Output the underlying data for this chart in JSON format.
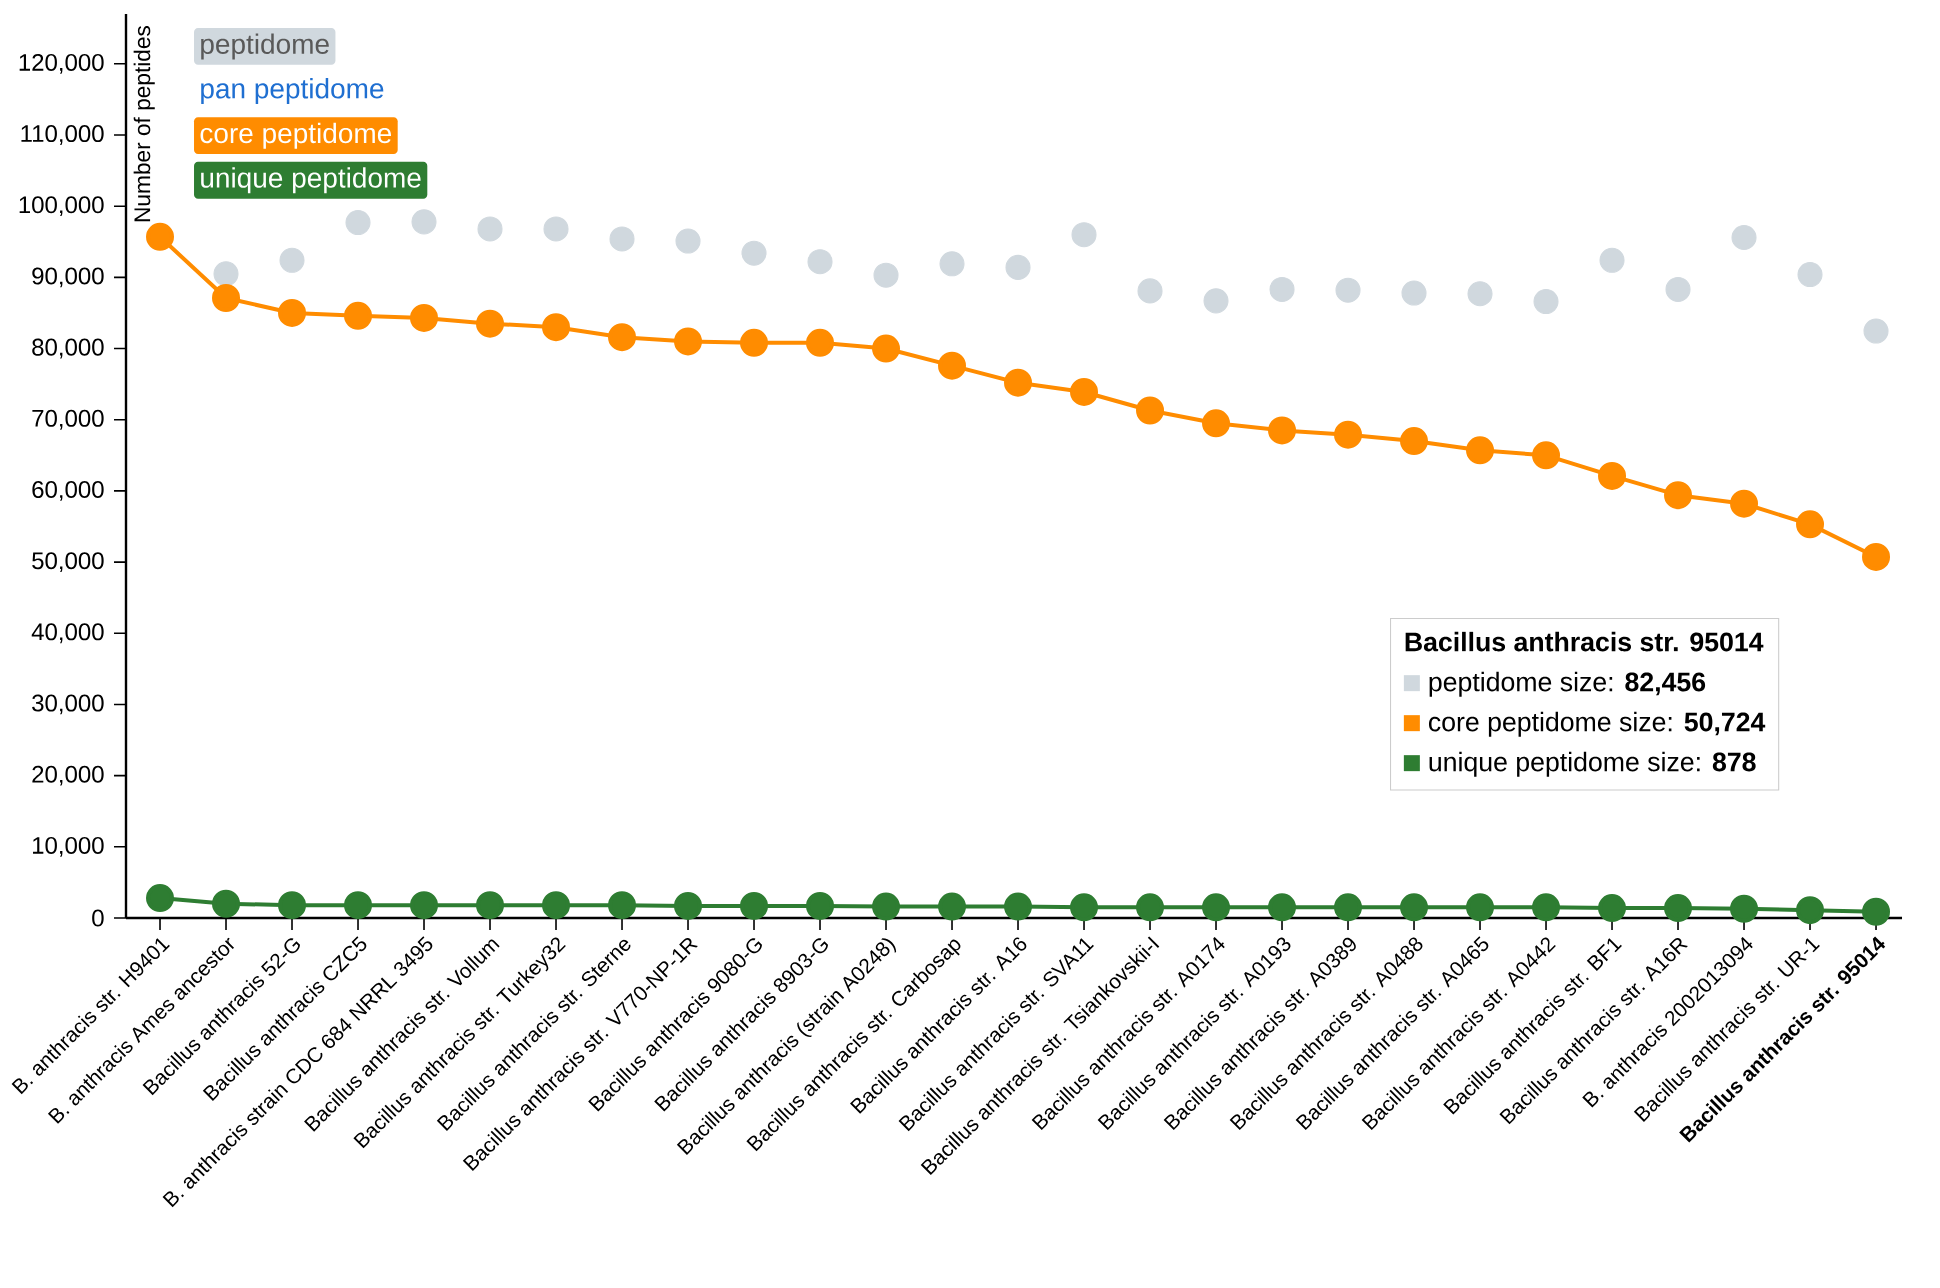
{
  "chart_data": {
    "type": "line",
    "ylabel": "Number of peptides",
    "categories": [
      "B. anthracis str. H9401",
      "B. anthracis Ames ancestor",
      "Bacillus anthracis 52-G",
      "Bacillus anthracis CZC5",
      "B. anthracis strain CDC 684 NRRL 3495",
      "Bacillus anthracis str. Vollum",
      "Bacillus anthracis str. Turkey32",
      "Bacillus anthracis str. Sterne",
      "Bacillus anthracis str. V770-NP-1R",
      "Bacillus anthracis 9080-G",
      "Bacillus anthracis 8903-G",
      "Bacillus anthracis (strain A0248)",
      "Bacillus anthracis str. Carbosap",
      "Bacillus anthracis str. A16",
      "Bacillus anthracis str. SVA11",
      "Bacillus anthracis str. Tsiankovskii-I",
      "Bacillus anthracis str. A0174",
      "Bacillus anthracis str. A0193",
      "Bacillus anthracis str. A0389",
      "Bacillus anthracis str. A0488",
      "Bacillus anthracis str. A0465",
      "Bacillus anthracis str. A0442",
      "Bacillus anthracis str. BF1",
      "Bacillus anthracis str. A16R",
      "B. anthracis 2002013094",
      "Bacillus anthracis str. UR-1",
      "Bacillus anthracis str. 95014"
    ],
    "series": [
      {
        "name": "peptidome",
        "type": "scatter",
        "color": "#d0d8de",
        "values": [
          null,
          90500,
          92400,
          97700,
          97800,
          96800,
          96800,
          95400,
          95100,
          93400,
          92200,
          90300,
          91900,
          91400,
          96000,
          88100,
          86700,
          88300,
          88200,
          87800,
          87700,
          86600,
          92400,
          88300,
          95600,
          90400,
          82456
        ]
      },
      {
        "name": "pan peptidome",
        "color": "#1f6fd1",
        "values": [
          null,
          null,
          null,
          null,
          null,
          null,
          null,
          null,
          null,
          null,
          null,
          null,
          null,
          null,
          null,
          null,
          null,
          null,
          null,
          null,
          null,
          null,
          null,
          null,
          null,
          null,
          null
        ]
      },
      {
        "name": "core peptidome",
        "color": "#ff8c00",
        "values": [
          95700,
          87100,
          85000,
          84600,
          84300,
          83500,
          83000,
          81600,
          81000,
          80800,
          80800,
          80000,
          77600,
          75200,
          73900,
          71300,
          69500,
          68500,
          67900,
          67000,
          65700,
          65000,
          62100,
          59400,
          58200,
          55300,
          50724
        ]
      },
      {
        "name": "unique peptidome",
        "color": "#2e7d32",
        "values": [
          2800,
          2000,
          1800,
          1800,
          1800,
          1800,
          1800,
          1800,
          1700,
          1700,
          1700,
          1600,
          1600,
          1600,
          1500,
          1500,
          1500,
          1500,
          1500,
          1500,
          1500,
          1500,
          1400,
          1400,
          1300,
          1100,
          878
        ]
      }
    ],
    "ylim": [
      0,
      127000
    ],
    "yticks": [
      {
        "value": 0,
        "label": "0"
      },
      {
        "value": 10000,
        "label": "10,000"
      },
      {
        "value": 20000,
        "label": "20,000"
      },
      {
        "value": 30000,
        "label": "30,000"
      },
      {
        "value": 40000,
        "label": "40,000"
      },
      {
        "value": 50000,
        "label": "50,000"
      },
      {
        "value": 60000,
        "label": "60,000"
      },
      {
        "value": 70000,
        "label": "70,000"
      },
      {
        "value": 80000,
        "label": "80,000"
      },
      {
        "value": 90000,
        "label": "90,000"
      },
      {
        "value": 100000,
        "label": "100,000"
      },
      {
        "value": 110000,
        "label": "110,000"
      },
      {
        "value": 120000,
        "label": "120,000"
      }
    ],
    "marker": "circle",
    "line_style": "solid",
    "grid": false,
    "legend": "top left",
    "annotations": [
      "**Bacillus anthracis str. 95014**",
      "peptidome size: **82,456**",
      "core peptidome size: **50,724**",
      "unique peptidome size: **878**"
    ]
  }
}
